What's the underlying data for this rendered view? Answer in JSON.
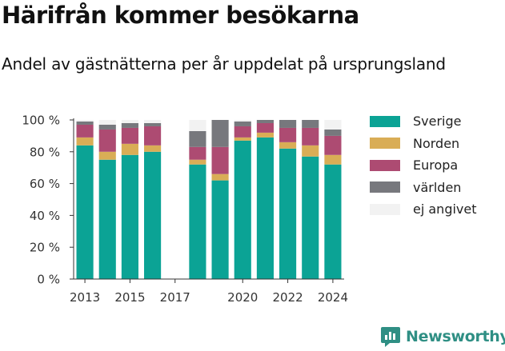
{
  "title": "Härifrån kommer besökarna",
  "subtitle": "Andel av gästnätterna per år uppdelat på ursprungsland",
  "brand": {
    "name": "Newsworthy",
    "icon": "newsworthy-logo-icon"
  },
  "colors": {
    "Sverige": "#0ba395",
    "Norden": "#d9ad56",
    "Europa": "#ad4b72",
    "världen": "#77787d",
    "ej angivet": "#f2f2f2",
    "axis": "#333333",
    "grid": "#d9d9d9",
    "brand": "#2f8f84"
  },
  "chart_data": {
    "type": "bar",
    "stacked": true,
    "categories": [
      "2013",
      "2014",
      "2015",
      "2016",
      "2017",
      "2018",
      "2019",
      "2020",
      "2021",
      "2022",
      "2023",
      "2024"
    ],
    "series": [
      {
        "name": "Sverige",
        "values": [
          84,
          75,
          78,
          80,
          null,
          72,
          62,
          87,
          89,
          82,
          77,
          72
        ]
      },
      {
        "name": "Norden",
        "values": [
          5,
          5,
          7,
          4,
          null,
          3,
          4,
          2,
          3,
          4,
          7,
          6
        ]
      },
      {
        "name": "Europa",
        "values": [
          8,
          14,
          10,
          12,
          null,
          8,
          17,
          7,
          6,
          9,
          11,
          12
        ]
      },
      {
        "name": "världen",
        "values": [
          2,
          3,
          3,
          2,
          null,
          10,
          17,
          3,
          2,
          5,
          5,
          4
        ]
      },
      {
        "name": "ej angivet",
        "values": [
          1,
          3,
          2,
          2,
          null,
          7,
          0,
          1,
          0,
          0,
          0,
          6
        ]
      }
    ],
    "x_tick_labels": [
      "2013",
      "2015",
      "2017",
      "2020",
      "2022",
      "2024"
    ],
    "y_tick_labels": [
      "0 %",
      "20 %",
      "40 %",
      "60 %",
      "80 %",
      "100 %"
    ],
    "ylim": [
      0,
      100
    ],
    "xlabel": "",
    "ylabel": "",
    "grid": false,
    "legend": "right"
  }
}
